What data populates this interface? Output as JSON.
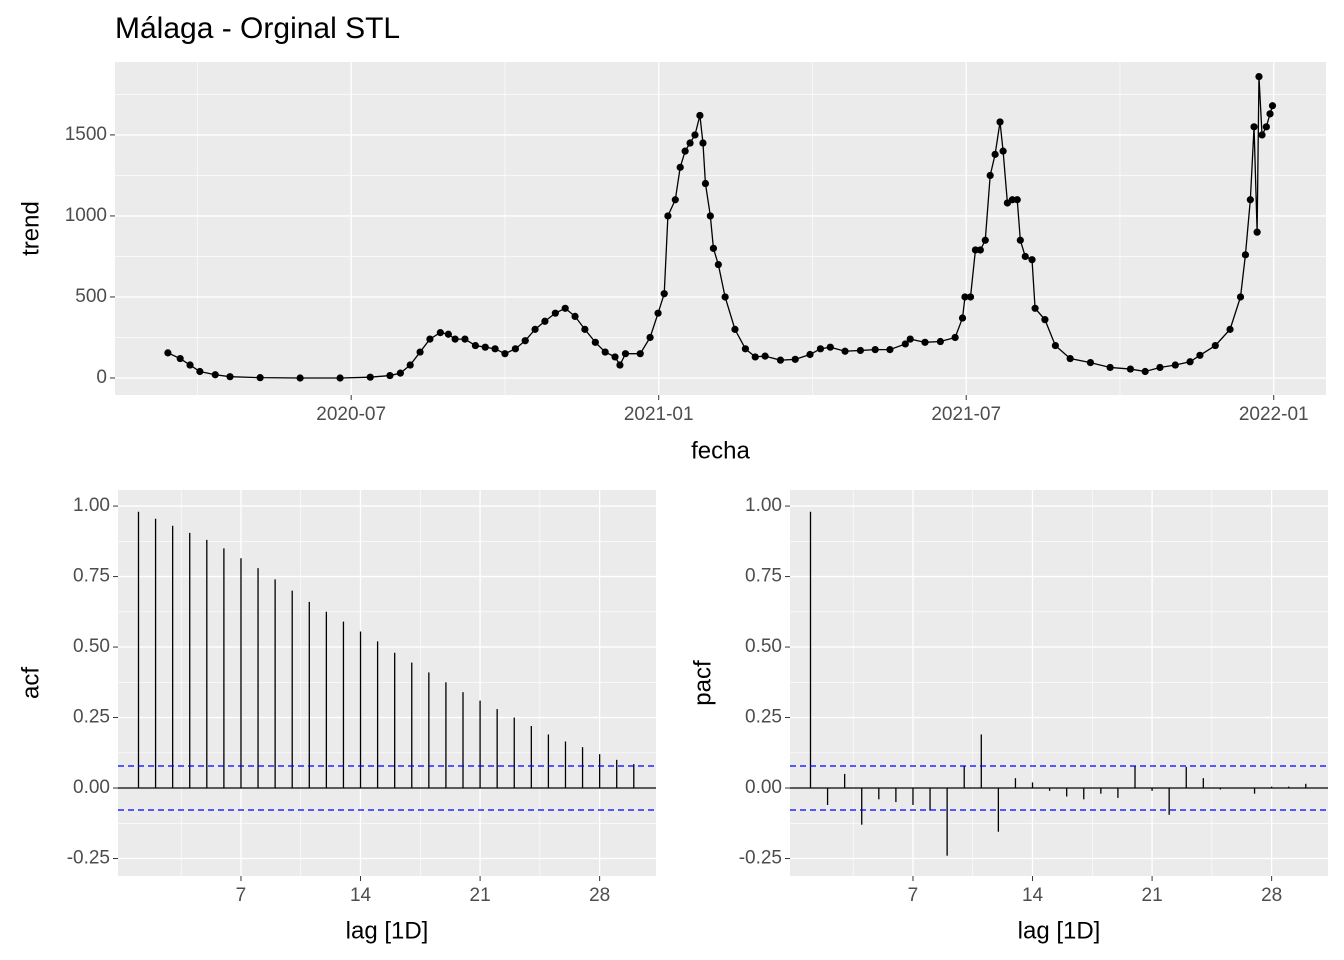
{
  "chart_data": [
    {
      "type": "line",
      "title": "Málaga - Orginal STL",
      "xlabel": "fecha",
      "ylabel": "trend",
      "color": "#000000",
      "grid": true,
      "xlim": [
        2020.116,
        2022.085
      ],
      "ylim": [
        -105,
        1950
      ],
      "xticks": [
        {
          "value": 2020.5,
          "label": "2020-07"
        },
        {
          "value": 2021.0,
          "label": "2021-01"
        },
        {
          "value": 2021.5,
          "label": "2021-07"
        },
        {
          "value": 2022.0,
          "label": "2022-01"
        }
      ],
      "yticks": [
        0,
        500,
        1000,
        1500
      ],
      "x": [
        2020.202,
        2020.222,
        2020.238,
        2020.254,
        2020.279,
        2020.303,
        2020.352,
        2020.417,
        2020.482,
        2020.531,
        2020.563,
        2020.58,
        2020.596,
        2020.612,
        2020.628,
        2020.645,
        2020.658,
        2020.669,
        2020.685,
        2020.702,
        2020.718,
        2020.734,
        2020.75,
        2020.767,
        2020.783,
        2020.799,
        2020.815,
        2020.832,
        2020.848,
        2020.864,
        2020.88,
        2020.897,
        2020.913,
        2020.929,
        2020.937,
        2020.946,
        2020.97,
        2020.986,
        2020.999,
        2021.009,
        2021.015,
        2021.027,
        2021.035,
        2021.043,
        2021.051,
        2021.059,
        2021.067,
        2021.072,
        2021.076,
        2021.084,
        2021.089,
        2021.097,
        2021.108,
        2021.124,
        2021.141,
        2021.157,
        2021.173,
        2021.198,
        2021.222,
        2021.246,
        2021.263,
        2021.279,
        2021.303,
        2021.328,
        2021.352,
        2021.376,
        2021.401,
        2021.409,
        2021.433,
        2021.458,
        2021.482,
        2021.494,
        2021.498,
        2021.507,
        2021.515,
        2021.523,
        2021.531,
        2021.539,
        2021.547,
        2021.555,
        2021.56,
        2021.567,
        2021.575,
        2021.583,
        2021.588,
        2021.596,
        2021.607,
        2021.612,
        2021.628,
        2021.645,
        2021.669,
        2021.702,
        2021.734,
        2021.767,
        2021.791,
        2021.815,
        2021.84,
        2021.864,
        2021.88,
        2021.905,
        2021.929,
        2021.946,
        2021.954,
        2021.962,
        2021.968,
        2021.973,
        2021.976,
        2021.981,
        2021.988,
        2021.994,
        2021.998
      ],
      "values": [
        155,
        120,
        80,
        40,
        20,
        8,
        2,
        0,
        0,
        5,
        15,
        30,
        80,
        160,
        240,
        280,
        270,
        240,
        240,
        200,
        190,
        180,
        150,
        180,
        230,
        300,
        350,
        400,
        430,
        380,
        300,
        220,
        160,
        130,
        80,
        150,
        150,
        250,
        400,
        520,
        1000,
        1100,
        1300,
        1400,
        1450,
        1500,
        1620,
        1450,
        1200,
        1000,
        800,
        700,
        500,
        300,
        180,
        130,
        135,
        110,
        115,
        145,
        180,
        190,
        165,
        170,
        175,
        175,
        210,
        240,
        220,
        225,
        250,
        370,
        500,
        500,
        790,
        790,
        850,
        1250,
        1380,
        1580,
        1400,
        1080,
        1100,
        1100,
        850,
        750,
        730,
        430,
        360,
        200,
        120,
        95,
        65,
        55,
        40,
        65,
        80,
        100,
        140,
        200,
        300,
        500,
        760,
        1100,
        1550,
        900,
        1860,
        1500,
        1550,
        1630,
        1680
      ]
    },
    {
      "type": "bar",
      "xlabel": "lag [1D]",
      "ylabel": "acf",
      "color": "#000000",
      "grid": true,
      "baseline": 0,
      "hlines": [
        0.078,
        -0.078
      ],
      "hline_color": "#0000ff",
      "xlim": [
        -0.2,
        31.3
      ],
      "ylim": [
        -0.312,
        1.057
      ],
      "xticks": [
        7,
        14,
        21,
        28
      ],
      "yticks": [
        {
          "value": -0.25,
          "label": "-0.25"
        },
        {
          "value": 0,
          "label": "0.00"
        },
        {
          "value": 0.25,
          "label": "0.25"
        },
        {
          "value": 0.5,
          "label": "0.50"
        },
        {
          "value": 0.75,
          "label": "0.75"
        },
        {
          "value": 1,
          "label": "1.00"
        }
      ],
      "x": [
        1,
        2,
        3,
        4,
        5,
        6,
        7,
        8,
        9,
        10,
        11,
        12,
        13,
        14,
        15,
        16,
        17,
        18,
        19,
        20,
        21,
        22,
        23,
        24,
        25,
        26,
        27,
        28,
        29,
        30
      ],
      "values": [
        0.98,
        0.955,
        0.93,
        0.905,
        0.88,
        0.85,
        0.815,
        0.78,
        0.74,
        0.7,
        0.66,
        0.625,
        0.59,
        0.555,
        0.52,
        0.48,
        0.445,
        0.41,
        0.375,
        0.34,
        0.31,
        0.28,
        0.25,
        0.22,
        0.19,
        0.165,
        0.145,
        0.12,
        0.1,
        0.085
      ]
    },
    {
      "type": "bar",
      "xlabel": "lag [1D]",
      "ylabel": "pacf",
      "color": "#000000",
      "grid": true,
      "baseline": 0,
      "hlines": [
        0.078,
        -0.078
      ],
      "hline_color": "#0000ff",
      "xlim": [
        -0.2,
        31.3
      ],
      "ylim": [
        -0.312,
        1.057
      ],
      "xticks": [
        7,
        14,
        21,
        28
      ],
      "yticks": [
        {
          "value": -0.25,
          "label": "-0.25"
        },
        {
          "value": 0,
          "label": "0.00"
        },
        {
          "value": 0.25,
          "label": "0.25"
        },
        {
          "value": 0.5,
          "label": "0.50"
        },
        {
          "value": 0.75,
          "label": "0.75"
        },
        {
          "value": 1,
          "label": "1.00"
        }
      ],
      "x": [
        1,
        2,
        3,
        4,
        5,
        6,
        7,
        8,
        9,
        10,
        11,
        12,
        13,
        14,
        15,
        16,
        17,
        18,
        19,
        20,
        21,
        22,
        23,
        24,
        25,
        26,
        27,
        28,
        29,
        30
      ],
      "values": [
        0.98,
        -0.06,
        0.05,
        -0.13,
        -0.04,
        -0.05,
        -0.06,
        -0.08,
        -0.24,
        0.08,
        0.19,
        -0.155,
        0.035,
        0.02,
        -0.01,
        -0.03,
        -0.04,
        -0.02,
        -0.035,
        0.08,
        -0.01,
        -0.095,
        0.075,
        0.035,
        -0.005,
        0,
        -0.02,
        0.005,
        0.005,
        0.015
      ]
    }
  ]
}
